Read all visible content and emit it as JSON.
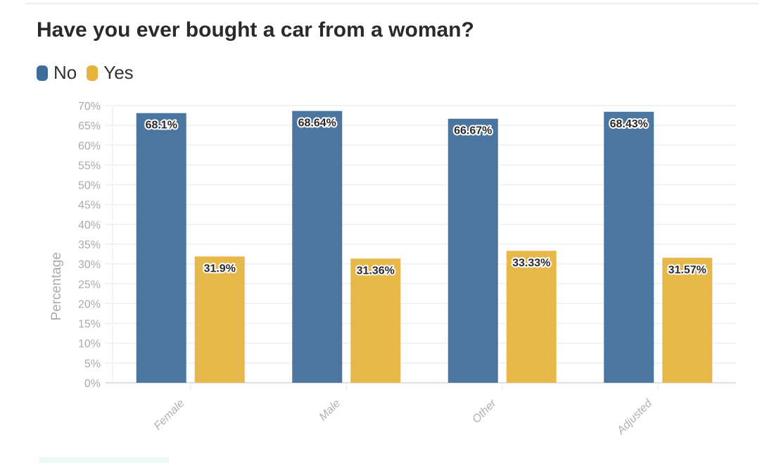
{
  "chart_data": {
    "type": "bar",
    "title": "Have you ever bought a car from a woman?",
    "xlabel": "",
    "ylabel": "Percentage",
    "ylim": [
      0,
      70
    ],
    "ytick_step": 5,
    "ytick_format": "{v}%",
    "grid": true,
    "legend_position": "top-left",
    "categories": [
      "Female",
      "Male",
      "Other",
      "Adjusted"
    ],
    "series": [
      {
        "name": "No",
        "color": "#4a76a0",
        "values": [
          68.1,
          68.64,
          66.67,
          68.43
        ],
        "labels": [
          "68.1%",
          "68.64%",
          "66.67%",
          "68.43%"
        ]
      },
      {
        "name": "Yes",
        "color": "#e6b84a",
        "values": [
          31.9,
          31.36,
          33.33,
          31.57
        ],
        "labels": [
          "31.9%",
          "31.36%",
          "33.33%",
          "31.57%"
        ]
      }
    ]
  }
}
